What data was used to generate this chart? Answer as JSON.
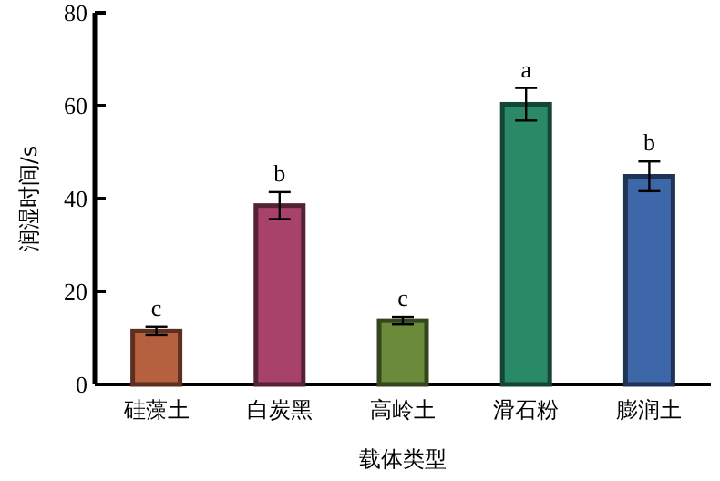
{
  "chart_data": {
    "type": "bar",
    "xlabel": "载体类型",
    "ylabel": "润湿时间/s",
    "categories": [
      "硅藻土",
      "白炭黑",
      "高岭土",
      "滑石粉",
      "膨润土"
    ],
    "values": [
      11.5,
      38.5,
      13.7,
      60.3,
      44.8
    ],
    "errors": [
      0.9,
      2.9,
      0.8,
      3.5,
      3.2
    ],
    "colors": [
      "#b5603f",
      "#a8426a",
      "#6b8a3a",
      "#2a8a68",
      "#3d67a8"
    ],
    "ylim": [
      0,
      80
    ],
    "yticks": [
      0,
      20,
      40,
      60,
      80
    ],
    "annotations": [
      {
        "text": "c",
        "x": "硅藻土",
        "y": 12.4
      },
      {
        "text": "b",
        "x": "白炭黑",
        "y": 41.4
      },
      {
        "text": "c",
        "x": "高岭土",
        "y": 14.5
      },
      {
        "text": "a",
        "x": "滑石粉",
        "y": 63.8
      },
      {
        "text": "b",
        "x": "膨润土",
        "y": 48
      }
    ]
  }
}
